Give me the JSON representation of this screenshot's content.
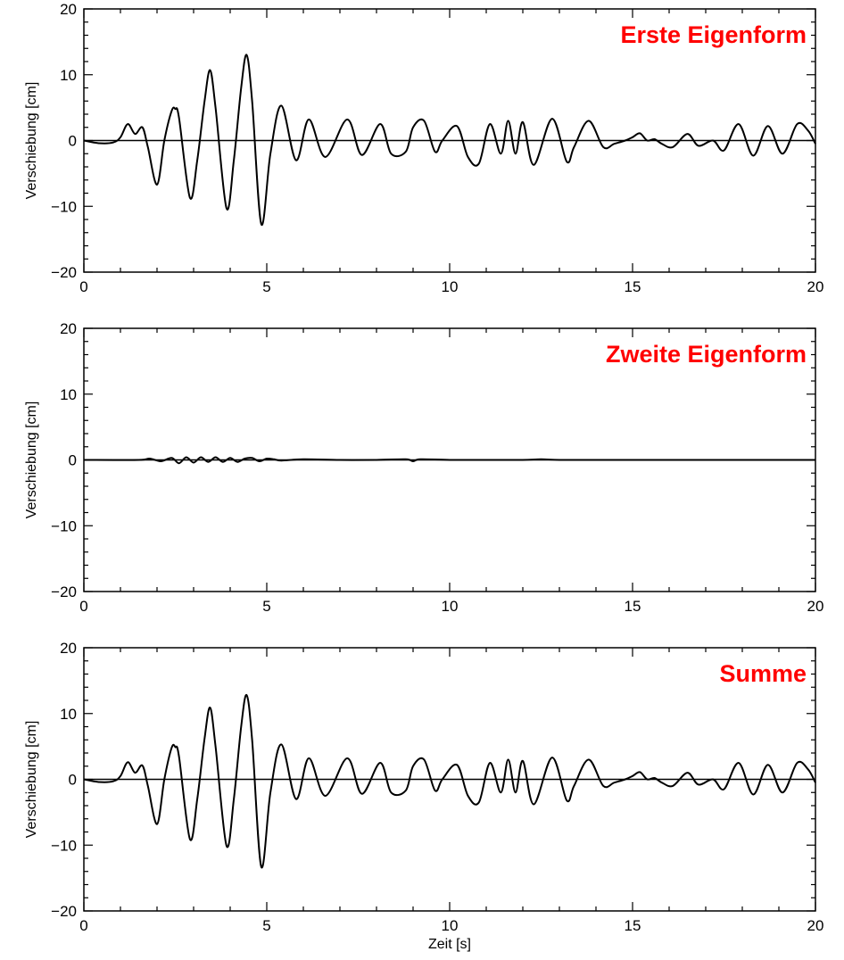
{
  "colors": {
    "title": "#ff0000",
    "line": "#000000",
    "axis": "#000000"
  },
  "chart_data": [
    {
      "type": "line",
      "title": "Erste Eigenform",
      "xlabel": "",
      "ylabel": "Verschiebung [cm]",
      "xlim": [
        0,
        20
      ],
      "ylim": [
        -20,
        20
      ],
      "xticks": [
        "0",
        "5",
        "10",
        "15",
        "20"
      ],
      "yticks": [
        "−20",
        "−10",
        "0",
        "10",
        "20"
      ],
      "grid": false,
      "series": [
        {
          "x": [
            0,
            0.4,
            0.8,
            1.0,
            1.2,
            1.4,
            1.6,
            1.75,
            2.0,
            2.2,
            2.4,
            2.5,
            2.6,
            2.9,
            3.1,
            3.3,
            3.45,
            3.6,
            3.9,
            4.1,
            4.3,
            4.45,
            4.6,
            4.85,
            5.1,
            5.4,
            5.8,
            6.15,
            6.6,
            7.2,
            7.6,
            8.1,
            8.4,
            8.8,
            9.0,
            9.3,
            9.6,
            9.8,
            10.2,
            10.5,
            10.8,
            11.1,
            11.4,
            11.6,
            11.8,
            12.0,
            12.3,
            12.8,
            13.2,
            13.4,
            13.8,
            14.2,
            14.5,
            14.8,
            15.0,
            15.2,
            15.4,
            15.6,
            15.8,
            16.1,
            16.5,
            16.8,
            17.2,
            17.5,
            17.9,
            18.3,
            18.7,
            19.1,
            19.5,
            19.8,
            20
          ],
          "y": [
            0,
            -0.4,
            -0.3,
            0.5,
            2.5,
            1,
            2,
            -1,
            -6.7,
            0,
            4.5,
            4.8,
            3.5,
            -8.7,
            -3,
            6,
            10.7,
            5,
            -10.3,
            -3,
            8,
            13,
            6,
            -12.7,
            -2,
            5.3,
            -3,
            3.2,
            -2.5,
            3.2,
            -2.2,
            2.5,
            -2,
            -1.7,
            2,
            3,
            -1.7,
            0,
            2.2,
            -2.5,
            -3.5,
            2.5,
            -2,
            3,
            -2,
            2.8,
            -3.7,
            3.3,
            -3.2,
            -1,
            3,
            -1,
            -0.5,
            0,
            0.5,
            1.1,
            0,
            0.2,
            -0.5,
            -1,
            1,
            -0.8,
            0,
            -1.5,
            2.5,
            -2.3,
            2.2,
            -2,
            2.5,
            1.5,
            -0.5
          ]
        }
      ]
    },
    {
      "type": "line",
      "title": "Zweite Eigenform",
      "xlabel": "",
      "ylabel": "Verschiebung [cm]",
      "xlim": [
        0,
        20
      ],
      "ylim": [
        -20,
        20
      ],
      "xticks": [
        "0",
        "5",
        "10",
        "15",
        "20"
      ],
      "yticks": [
        "−20",
        "−10",
        "0",
        "10",
        "20"
      ],
      "grid": false,
      "series": [
        {
          "x": [
            0,
            1.5,
            1.8,
            2.1,
            2.4,
            2.6,
            2.8,
            3.0,
            3.2,
            3.4,
            3.6,
            3.8,
            4.0,
            4.2,
            4.4,
            4.6,
            4.8,
            5.0,
            5.2,
            5.4,
            6.0,
            7.0,
            8.0,
            8.8,
            9.0,
            9.2,
            10.0,
            11.0,
            12.0,
            12.5,
            13.0,
            14.0,
            15.0,
            16.0,
            17.0,
            18.0,
            19.0,
            20
          ],
          "y": [
            0,
            0,
            0.2,
            -0.2,
            0.3,
            -0.5,
            0.4,
            -0.4,
            0.4,
            -0.3,
            0.4,
            -0.3,
            0.3,
            -0.3,
            0.2,
            0.3,
            -0.2,
            0.2,
            0.1,
            -0.1,
            0.1,
            0,
            0,
            0.1,
            -0.2,
            0.1,
            0,
            0,
            0,
            0.1,
            0,
            0,
            0,
            0,
            0,
            0,
            0,
            0
          ]
        }
      ]
    },
    {
      "type": "line",
      "title": "Summe",
      "xlabel": "Zeit [s]",
      "ylabel": "Verschiebung [cm]",
      "xlim": [
        0,
        20
      ],
      "ylim": [
        -20,
        20
      ],
      "xticks": [
        "0",
        "5",
        "10",
        "15",
        "20"
      ],
      "yticks": [
        "−20",
        "−10",
        "0",
        "10",
        "20"
      ],
      "grid": false,
      "series": [
        {
          "x": [
            0,
            0.4,
            0.8,
            1.0,
            1.2,
            1.4,
            1.6,
            1.75,
            2.0,
            2.2,
            2.4,
            2.5,
            2.6,
            2.9,
            3.1,
            3.3,
            3.45,
            3.6,
            3.9,
            4.1,
            4.3,
            4.45,
            4.6,
            4.85,
            5.1,
            5.4,
            5.8,
            6.15,
            6.6,
            7.2,
            7.6,
            8.1,
            8.4,
            8.8,
            9.0,
            9.3,
            9.6,
            9.8,
            10.2,
            10.5,
            10.8,
            11.1,
            11.4,
            11.6,
            11.8,
            12.0,
            12.3,
            12.8,
            13.2,
            13.4,
            13.8,
            14.2,
            14.5,
            14.8,
            15.0,
            15.2,
            15.4,
            15.6,
            15.8,
            16.1,
            16.5,
            16.8,
            17.2,
            17.5,
            17.9,
            18.3,
            18.7,
            19.1,
            19.5,
            19.8,
            20
          ],
          "y": [
            0,
            -0.4,
            -0.3,
            0.5,
            2.6,
            1,
            2.1,
            -1,
            -6.8,
            0,
            4.8,
            4.9,
            3.5,
            -9.1,
            -3,
            6.2,
            10.9,
            5,
            -10.1,
            -3,
            8,
            12.8,
            6,
            -13.3,
            -2,
            5.3,
            -3,
            3.2,
            -2.5,
            3.2,
            -2.2,
            2.5,
            -2,
            -1.7,
            2,
            3,
            -1.7,
            0,
            2.2,
            -2.5,
            -3.5,
            2.5,
            -2,
            3,
            -2,
            2.8,
            -3.8,
            3.3,
            -3.2,
            -1,
            3,
            -1,
            -0.5,
            0,
            0.5,
            1.1,
            0,
            0.2,
            -0.5,
            -1,
            1,
            -0.8,
            0,
            -1.5,
            2.5,
            -2.3,
            2.2,
            -2,
            2.5,
            1.5,
            -0.5
          ]
        }
      ]
    }
  ]
}
